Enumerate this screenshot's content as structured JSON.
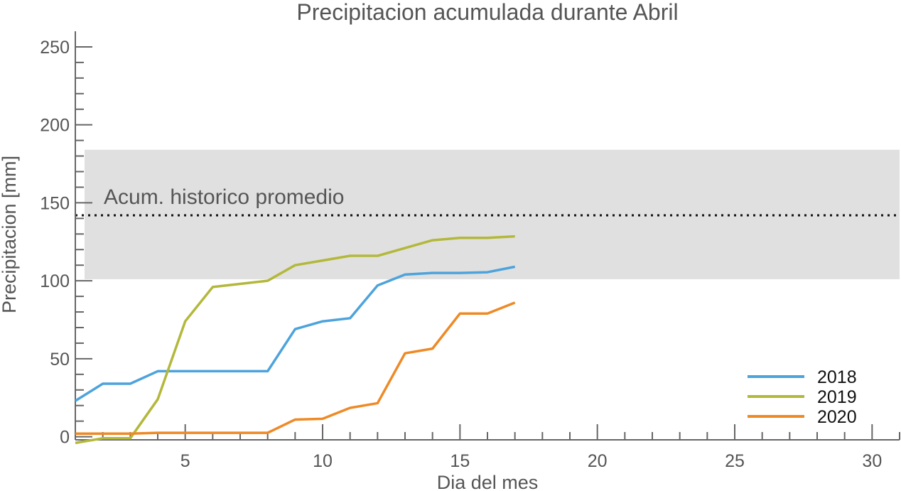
{
  "chart_data": {
    "type": "line",
    "title": "Precipitacion acumulada durante Abril",
    "xlabel": "Dia del mes",
    "ylabel": "Precipitacion [mm]",
    "xlim": [
      1,
      31
    ],
    "ylim": [
      -2,
      260
    ],
    "xticks": [
      5,
      10,
      15,
      20,
      25,
      30
    ],
    "yticks": [
      0,
      50,
      100,
      150,
      200,
      250
    ],
    "grid": false,
    "legend_position": "bottom-right",
    "historic_band": {
      "low": 101,
      "high": 184,
      "color": "#e0e0e0"
    },
    "historic_mean": {
      "value": 142,
      "label": "Acum. historico promedio"
    },
    "x": [
      1,
      2,
      3,
      4,
      5,
      6,
      7,
      8,
      9,
      10,
      11,
      12,
      13,
      14,
      15,
      16,
      17
    ],
    "series": [
      {
        "name": "2018",
        "color": "#4da3dc",
        "values": [
          23,
          34,
          34,
          42,
          42,
          42,
          42,
          42,
          69,
          74,
          76,
          97,
          104,
          105,
          105,
          105.5,
          109
        ]
      },
      {
        "name": "2019",
        "color": "#b3b83a",
        "values": [
          -4,
          -1,
          -1,
          24,
          74,
          96,
          98,
          100,
          110,
          113,
          116,
          116,
          121,
          126,
          127.5,
          127.5,
          128.5
        ]
      },
      {
        "name": "2020",
        "color": "#ee8a26",
        "values": [
          2,
          2,
          2,
          2.5,
          2.5,
          2.5,
          2.5,
          2.5,
          11,
          11.5,
          18.5,
          21.5,
          53.5,
          56.5,
          79,
          79,
          86
        ]
      }
    ]
  }
}
